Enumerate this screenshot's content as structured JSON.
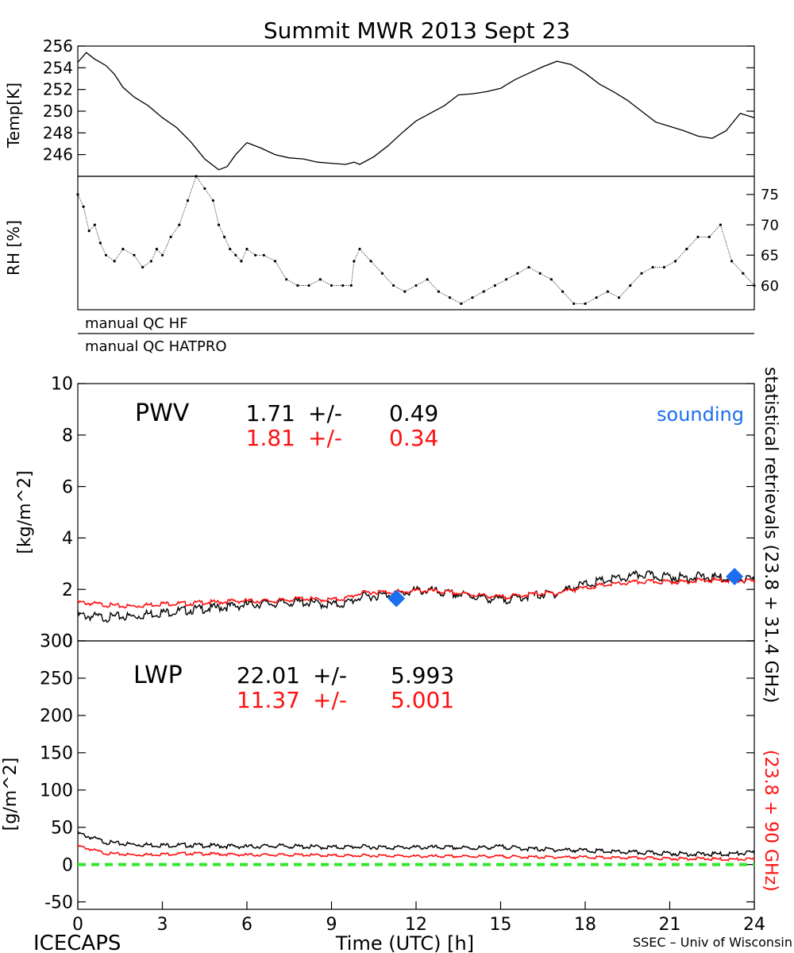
{
  "title": "Summit MWR 2013 Sept 23",
  "footer": {
    "left": "ICECAPS",
    "center": "Time (UTC) [h]",
    "right": "SSEC – Univ of Wisconsin"
  },
  "qc_labels": [
    "manual QC HF",
    "manual QC HATPRO"
  ],
  "right_labels": {
    "statistical": "statistical retrievals (23.8 + 31.4 GHz)",
    "red": "(23.8 + 90 GHz)"
  },
  "colors": {
    "black": "#000000",
    "red": "#ff1010",
    "blue": "#1a6ef0",
    "green": "#33e62e"
  },
  "chart_data": [
    {
      "id": "temp",
      "type": "line",
      "ylabel": "Temp[K]",
      "xlim": [
        0,
        24
      ],
      "ylim": [
        244,
        256
      ],
      "yticks": [
        246,
        248,
        250,
        252,
        254,
        256
      ],
      "series": [
        {
          "color": "black",
          "x": [
            0,
            0.3,
            0.6,
            1,
            1.3,
            1.6,
            2,
            2.5,
            3,
            3.5,
            4,
            4.5,
            5,
            5.3,
            5.6,
            6,
            6.5,
            7,
            7.5,
            8,
            8.5,
            9,
            9.5,
            9.8,
            10,
            10.5,
            11,
            11.5,
            12,
            12.5,
            13,
            13.5,
            14,
            14.5,
            15,
            15.5,
            16,
            16.5,
            17,
            17.5,
            18,
            18.5,
            19,
            19.5,
            20,
            20.5,
            21,
            21.5,
            22,
            22.5,
            23,
            23.5,
            24
          ],
          "y": [
            254.5,
            255.4,
            254.8,
            254.2,
            253.4,
            252.2,
            251.3,
            250.5,
            249.4,
            248.5,
            247.2,
            245.6,
            244.6,
            244.9,
            246.0,
            247.1,
            246.6,
            246.0,
            245.7,
            245.6,
            245.3,
            245.2,
            245.1,
            245.3,
            245.1,
            245.8,
            246.8,
            248.0,
            249.1,
            249.8,
            250.5,
            251.5,
            251.6,
            251.8,
            252.1,
            252.9,
            253.5,
            254.1,
            254.6,
            254.3,
            253.5,
            252.5,
            251.8,
            251.0,
            250.0,
            249.0,
            248.6,
            248.2,
            247.7,
            247.5,
            248.2,
            249.8,
            249.4
          ]
        }
      ]
    },
    {
      "id": "rh",
      "type": "scatter",
      "ylabel": "RH [%]",
      "xlim": [
        0,
        24
      ],
      "ylim": [
        56,
        78
      ],
      "yticks": [
        60,
        65,
        70,
        75
      ],
      "series": [
        {
          "color": "black",
          "x": [
            0,
            0.2,
            0.4,
            0.6,
            0.8,
            1,
            1.3,
            1.6,
            2,
            2.3,
            2.6,
            2.8,
            3,
            3.3,
            3.6,
            3.9,
            4.2,
            4.5,
            4.8,
            5,
            5.2,
            5.4,
            5.6,
            5.8,
            6,
            6.3,
            6.6,
            7,
            7.4,
            7.8,
            8.2,
            8.6,
            9,
            9.4,
            9.7,
            9.8,
            10,
            10.4,
            10.8,
            11.2,
            11.6,
            12,
            12.4,
            12.8,
            13.2,
            13.6,
            14,
            14.4,
            14.8,
            15.2,
            15.6,
            16,
            16.4,
            16.8,
            17.2,
            17.6,
            18,
            18.4,
            18.8,
            19.2,
            19.6,
            20,
            20.4,
            20.8,
            21.2,
            21.6,
            22,
            22.4,
            22.8,
            23.2,
            23.6,
            24
          ],
          "y": [
            75,
            73,
            69,
            70,
            67,
            65,
            64,
            66,
            65,
            63,
            64,
            66,
            65,
            68,
            70,
            74,
            78,
            76,
            74,
            70,
            68,
            66,
            65,
            64,
            66,
            65,
            65,
            64,
            61,
            60,
            60,
            61,
            60,
            60,
            60,
            64,
            66,
            64,
            62,
            60,
            59,
            60,
            61,
            59,
            58,
            57,
            58,
            59,
            60,
            61,
            62,
            63,
            62,
            61,
            59,
            57,
            57,
            58,
            59,
            58,
            60,
            62,
            63,
            63,
            64,
            66,
            68,
            68,
            70,
            64,
            62,
            60
          ]
        }
      ]
    },
    {
      "id": "pwv",
      "type": "line",
      "ylabel": "[kg/m^2]",
      "label": "PWV",
      "stats": [
        {
          "value": "1.71",
          "pm": "+/-",
          "err": "0.49",
          "color": "black"
        },
        {
          "value": "1.81",
          "pm": "+/-",
          "err": "0.34",
          "color": "red"
        }
      ],
      "legend": "sounding",
      "xlim": [
        0,
        24
      ],
      "ylim": [
        0,
        10
      ],
      "yticks": [
        0,
        2,
        4,
        6,
        8,
        10
      ],
      "series": [
        {
          "color": "black",
          "x": [
            0,
            0.5,
            1,
            1.5,
            2,
            2.5,
            3,
            3.5,
            4,
            4.5,
            5,
            5.5,
            6,
            6.5,
            7,
            7.5,
            8,
            8.5,
            9,
            9.5,
            10,
            10.5,
            11,
            11.5,
            12,
            12.5,
            13,
            13.5,
            14,
            14.5,
            15,
            15.5,
            16,
            16.5,
            17,
            17.5,
            18,
            18.5,
            19,
            19.5,
            20,
            20.5,
            21,
            21.5,
            22,
            22.5,
            23,
            23.5,
            24
          ],
          "y": [
            1.0,
            0.95,
            0.9,
            0.95,
            0.95,
            1.05,
            1.1,
            1.15,
            1.2,
            1.25,
            1.3,
            1.35,
            1.4,
            1.45,
            1.45,
            1.5,
            1.5,
            1.45,
            1.4,
            1.45,
            1.7,
            1.75,
            1.8,
            1.85,
            1.95,
            1.95,
            1.85,
            1.8,
            1.75,
            1.65,
            1.6,
            1.65,
            1.75,
            1.8,
            1.85,
            2.05,
            2.2,
            2.3,
            2.4,
            2.45,
            2.6,
            2.5,
            2.5,
            2.45,
            2.5,
            2.45,
            2.45,
            2.4,
            2.35
          ]
        },
        {
          "color": "red",
          "x": [
            0,
            0.5,
            1,
            1.5,
            2,
            2.5,
            3,
            3.5,
            4,
            4.5,
            5,
            5.5,
            6,
            6.5,
            7,
            7.5,
            8,
            8.5,
            9,
            9.5,
            10,
            10.5,
            11,
            11.5,
            12,
            12.5,
            13,
            13.5,
            14,
            14.5,
            15,
            15.5,
            16,
            16.5,
            17,
            17.5,
            18,
            18.5,
            19,
            19.5,
            20,
            20.5,
            21,
            21.5,
            22,
            22.5,
            23,
            23.5,
            24
          ],
          "y": [
            1.5,
            1.45,
            1.4,
            1.35,
            1.35,
            1.4,
            1.45,
            1.45,
            1.45,
            1.5,
            1.5,
            1.55,
            1.55,
            1.55,
            1.55,
            1.6,
            1.65,
            1.6,
            1.6,
            1.65,
            1.85,
            1.9,
            1.9,
            1.9,
            1.95,
            1.95,
            1.9,
            1.85,
            1.8,
            1.75,
            1.7,
            1.75,
            1.8,
            1.85,
            1.85,
            2.0,
            2.05,
            2.15,
            2.2,
            2.25,
            2.3,
            2.3,
            2.3,
            2.3,
            2.35,
            2.35,
            2.35,
            2.35,
            2.3
          ]
        }
      ],
      "sounding": [
        {
          "x": 11.3,
          "y": 1.65
        },
        {
          "x": 23.3,
          "y": 2.5
        }
      ]
    },
    {
      "id": "lwp",
      "type": "line",
      "ylabel": "[g/m^2]",
      "label": "LWP",
      "stats": [
        {
          "value": "22.01",
          "pm": "+/-",
          "err": "5.993",
          "color": "black"
        },
        {
          "value": "11.37",
          "pm": "+/-",
          "err": "5.001",
          "color": "red"
        }
      ],
      "xlabel": "Time (UTC) [h]",
      "xlim": [
        0,
        24
      ],
      "xticks": [
        0,
        3,
        6,
        9,
        12,
        15,
        18,
        21,
        24
      ],
      "ylim": [
        -60,
        300
      ],
      "yticks": [
        -50,
        0,
        50,
        100,
        150,
        200,
        250,
        300
      ],
      "series": [
        {
          "color": "black",
          "x": [
            0,
            0.5,
            1,
            1.5,
            2,
            3,
            4,
            5,
            6,
            7,
            8,
            9,
            10,
            11,
            12,
            13,
            14,
            15,
            16,
            17,
            18,
            19,
            20,
            21,
            22,
            23,
            24
          ],
          "y": [
            42,
            36,
            30,
            28,
            27,
            26,
            26,
            25,
            24,
            25,
            24,
            23,
            24,
            23,
            23,
            23,
            22,
            24,
            21,
            20,
            19,
            17,
            16,
            15,
            14,
            14,
            16
          ]
        },
        {
          "color": "red",
          "x": [
            0,
            0.5,
            1,
            1.5,
            2,
            3,
            4,
            5,
            6,
            7,
            8,
            9,
            10,
            11,
            12,
            13,
            14,
            15,
            16,
            17,
            18,
            19,
            20,
            21,
            22,
            23,
            24
          ],
          "y": [
            25,
            20,
            15,
            14,
            13,
            14,
            15,
            14,
            13,
            13,
            13,
            12,
            12,
            12,
            11,
            11,
            11,
            11,
            10,
            10,
            10,
            9,
            9,
            8,
            8,
            7,
            7
          ]
        }
      ],
      "zero_line": 0
    }
  ]
}
